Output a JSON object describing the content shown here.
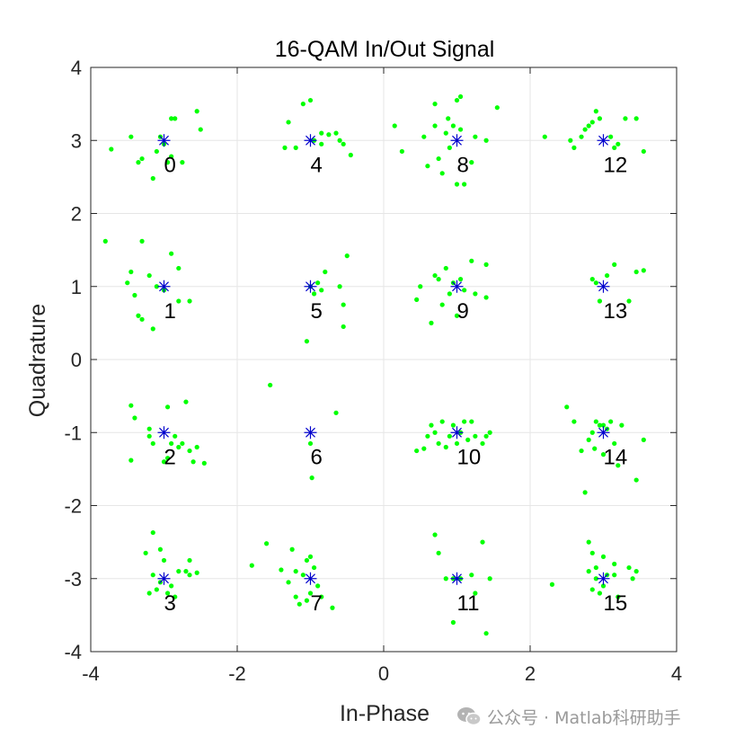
{
  "chart_data": {
    "type": "scatter",
    "title": "16-QAM In/Out Signal",
    "xlabel": "In-Phase",
    "ylabel": "Quadrature",
    "xlim": [
      -4,
      4
    ],
    "ylim": [
      -4,
      4
    ],
    "xticks": [
      -4,
      -2,
      0,
      2,
      4
    ],
    "yticks": [
      -4,
      -3,
      -2,
      -1,
      0,
      1,
      2,
      3,
      4
    ],
    "xtick_labels": [
      "-4",
      "-2",
      "0",
      "2",
      "4"
    ],
    "ytick_labels": [
      "-4",
      "-3",
      "-2",
      "-1",
      "0",
      "1",
      "2",
      "3",
      "4"
    ],
    "grid": true,
    "colors": {
      "received": "#00ff00",
      "reference": "#0000cc",
      "grid": "#e6e6e6",
      "axis": "#262626"
    },
    "series": [
      {
        "marker": "dot",
        "points": [
          [
            -3.72,
            2.88
          ],
          [
            -3.35,
            2.7
          ],
          [
            -3.3,
            2.75
          ],
          [
            -3.1,
            2.85
          ],
          [
            -3.05,
            3.05
          ],
          [
            -3.0,
            2.95
          ],
          [
            -2.95,
            2.7
          ],
          [
            -2.9,
            3.3
          ],
          [
            -2.85,
            3.3
          ],
          [
            -2.9,
            2.78
          ],
          [
            -2.75,
            2.7
          ],
          [
            -3.15,
            2.48
          ],
          [
            -2.55,
            3.4
          ],
          [
            -2.5,
            3.15
          ],
          [
            -3.45,
            3.05
          ],
          [
            -1.0,
            3.55
          ],
          [
            -1.1,
            3.5
          ],
          [
            -1.3,
            3.25
          ],
          [
            -1.35,
            2.9
          ],
          [
            -1.2,
            2.9
          ],
          [
            -0.95,
            3.0
          ],
          [
            -0.85,
            3.1
          ],
          [
            -0.75,
            3.08
          ],
          [
            -0.65,
            3.1
          ],
          [
            -0.55,
            2.95
          ],
          [
            -0.6,
            3.0
          ],
          [
            -0.45,
            2.8
          ],
          [
            -0.85,
            2.95
          ],
          [
            0.15,
            3.2
          ],
          [
            0.25,
            2.85
          ],
          [
            0.55,
            3.05
          ],
          [
            0.6,
            2.65
          ],
          [
            0.7,
            3.5
          ],
          [
            0.75,
            2.75
          ],
          [
            0.8,
            2.55
          ],
          [
            0.85,
            3.1
          ],
          [
            0.9,
            2.9
          ],
          [
            0.95,
            3.2
          ],
          [
            1.0,
            3.55
          ],
          [
            1.05,
            3.6
          ],
          [
            1.05,
            3.15
          ],
          [
            1.1,
            2.4
          ],
          [
            1.0,
            2.4
          ],
          [
            1.2,
            2.7
          ],
          [
            1.25,
            3.05
          ],
          [
            1.4,
            3.0
          ],
          [
            1.55,
            3.45
          ],
          [
            0.88,
            3.3
          ],
          [
            0.7,
            3.2
          ],
          [
            2.2,
            3.05
          ],
          [
            2.55,
            3.0
          ],
          [
            2.6,
            2.9
          ],
          [
            2.75,
            3.15
          ],
          [
            2.8,
            3.2
          ],
          [
            2.85,
            3.25
          ],
          [
            2.9,
            3.4
          ],
          [
            2.95,
            3.3
          ],
          [
            3.1,
            3.05
          ],
          [
            3.15,
            2.9
          ],
          [
            3.2,
            2.95
          ],
          [
            3.3,
            3.3
          ],
          [
            3.45,
            3.3
          ],
          [
            3.55,
            2.85
          ],
          [
            2.7,
            3.05
          ],
          [
            -3.8,
            1.62
          ],
          [
            -3.3,
            1.62
          ],
          [
            -3.5,
            1.05
          ],
          [
            -3.45,
            1.2
          ],
          [
            -3.3,
            0.55
          ],
          [
            -3.35,
            0.6
          ],
          [
            -3.15,
            0.42
          ],
          [
            -3.1,
            1.0
          ],
          [
            -3.0,
            0.95
          ],
          [
            -2.9,
            1.45
          ],
          [
            -2.8,
            1.25
          ],
          [
            -2.8,
            0.8
          ],
          [
            -2.65,
            0.8
          ],
          [
            -3.2,
            1.15
          ],
          [
            -3.4,
            0.88
          ],
          [
            -1.0,
            1.0
          ],
          [
            -0.95,
            0.9
          ],
          [
            -0.9,
            1.05
          ],
          [
            -0.85,
            0.95
          ],
          [
            -0.8,
            1.2
          ],
          [
            -0.6,
            1.0
          ],
          [
            -0.55,
            0.75
          ],
          [
            -0.55,
            0.45
          ],
          [
            -0.5,
            1.42
          ],
          [
            -1.05,
            0.25
          ],
          [
            0.45,
            0.82
          ],
          [
            0.65,
            0.5
          ],
          [
            0.7,
            1.15
          ],
          [
            0.75,
            1.1
          ],
          [
            0.8,
            0.75
          ],
          [
            0.85,
            1.25
          ],
          [
            0.9,
            0.9
          ],
          [
            0.95,
            1.05
          ],
          [
            1.0,
            0.6
          ],
          [
            1.05,
            1.1
          ],
          [
            1.1,
            0.95
          ],
          [
            1.2,
            1.35
          ],
          [
            1.25,
            0.9
          ],
          [
            1.4,
            0.85
          ],
          [
            1.4,
            1.3
          ],
          [
            0.5,
            1.0
          ],
          [
            2.85,
            1.1
          ],
          [
            2.95,
            0.8
          ],
          [
            3.05,
            1.15
          ],
          [
            3.15,
            1.3
          ],
          [
            3.35,
            0.8
          ],
          [
            3.45,
            1.2
          ],
          [
            3.55,
            1.22
          ],
          [
            2.9,
            1.05
          ],
          [
            -3.45,
            -0.63
          ],
          [
            -3.4,
            -0.8
          ],
          [
            -3.45,
            -1.38
          ],
          [
            -3.2,
            -0.95
          ],
          [
            -3.15,
            -1.15
          ],
          [
            -3.2,
            -1.05
          ],
          [
            -3.0,
            -1.4
          ],
          [
            -2.95,
            -0.65
          ],
          [
            -2.9,
            -1.15
          ],
          [
            -2.85,
            -1.05
          ],
          [
            -2.8,
            -1.2
          ],
          [
            -2.75,
            -1.15
          ],
          [
            -2.7,
            -0.58
          ],
          [
            -2.6,
            -1.4
          ],
          [
            -2.55,
            -1.2
          ],
          [
            -2.45,
            -1.42
          ],
          [
            -2.95,
            -1.35
          ],
          [
            -2.65,
            -1.25
          ],
          [
            -1.55,
            -0.35
          ],
          [
            -0.65,
            -0.73
          ],
          [
            -0.98,
            -1.62
          ],
          [
            -1.0,
            -1.15
          ],
          [
            0.45,
            -1.25
          ],
          [
            0.6,
            -1.05
          ],
          [
            0.65,
            -0.9
          ],
          [
            0.7,
            -1.0
          ],
          [
            0.75,
            -1.15
          ],
          [
            0.8,
            -0.85
          ],
          [
            0.85,
            -1.2
          ],
          [
            0.9,
            -1.05
          ],
          [
            0.95,
            -0.9
          ],
          [
            1.0,
            -1.15
          ],
          [
            1.05,
            -1.0
          ],
          [
            1.1,
            -0.85
          ],
          [
            1.15,
            -1.1
          ],
          [
            1.2,
            -0.85
          ],
          [
            1.25,
            -1.05
          ],
          [
            1.35,
            -1.15
          ],
          [
            1.45,
            -1.0
          ],
          [
            1.4,
            -1.05
          ],
          [
            0.55,
            -1.22
          ],
          [
            2.5,
            -0.65
          ],
          [
            2.6,
            -0.85
          ],
          [
            2.7,
            -1.25
          ],
          [
            2.8,
            -1.1
          ],
          [
            2.85,
            -1.0
          ],
          [
            2.9,
            -0.85
          ],
          [
            2.95,
            -0.9
          ],
          [
            3.0,
            -0.9
          ],
          [
            3.0,
            -1.3
          ],
          [
            3.05,
            -0.95
          ],
          [
            3.1,
            -0.85
          ],
          [
            3.15,
            -1.15
          ],
          [
            3.2,
            -1.45
          ],
          [
            3.25,
            -0.9
          ],
          [
            3.45,
            -1.65
          ],
          [
            3.55,
            -1.1
          ],
          [
            2.75,
            -1.82
          ],
          [
            2.88,
            -1.22
          ],
          [
            -3.15,
            -2.37
          ],
          [
            -3.25,
            -2.65
          ],
          [
            -3.15,
            -2.95
          ],
          [
            -3.05,
            -3.05
          ],
          [
            -3.2,
            -3.2
          ],
          [
            -3.1,
            -3.15
          ],
          [
            -3.0,
            -2.75
          ],
          [
            -2.95,
            -3.2
          ],
          [
            -2.9,
            -3.1
          ],
          [
            -2.8,
            -2.9
          ],
          [
            -2.7,
            -2.9
          ],
          [
            -2.65,
            -2.95
          ],
          [
            -2.65,
            -2.75
          ],
          [
            -2.55,
            -2.92
          ],
          [
            -3.05,
            -2.6
          ],
          [
            -2.85,
            -3.25
          ],
          [
            -1.8,
            -2.82
          ],
          [
            -1.6,
            -2.52
          ],
          [
            -1.4,
            -2.88
          ],
          [
            -1.25,
            -2.6
          ],
          [
            -1.2,
            -2.9
          ],
          [
            -1.1,
            -2.95
          ],
          [
            -1.05,
            -2.75
          ],
          [
            -1.0,
            -2.7
          ],
          [
            -0.95,
            -2.85
          ],
          [
            -0.9,
            -3.1
          ],
          [
            -1.0,
            -3.2
          ],
          [
            -1.05,
            -3.3
          ],
          [
            -1.2,
            -3.25
          ],
          [
            -1.15,
            -3.35
          ],
          [
            -0.85,
            -3.25
          ],
          [
            -0.7,
            -3.4
          ],
          [
            -1.3,
            -3.05
          ],
          [
            0.7,
            -2.4
          ],
          [
            0.75,
            -2.65
          ],
          [
            0.85,
            -3.0
          ],
          [
            0.95,
            -3.0
          ],
          [
            1.05,
            -3.0
          ],
          [
            1.2,
            -2.95
          ],
          [
            1.25,
            -3.2
          ],
          [
            1.35,
            -2.5
          ],
          [
            1.45,
            -3.0
          ],
          [
            0.95,
            -3.6
          ],
          [
            1.4,
            -3.75
          ],
          [
            2.3,
            -3.08
          ],
          [
            2.8,
            -2.5
          ],
          [
            2.85,
            -2.65
          ],
          [
            2.9,
            -2.85
          ],
          [
            2.95,
            -3.2
          ],
          [
            2.9,
            -3.0
          ],
          [
            3.0,
            -3.1
          ],
          [
            3.05,
            -2.95
          ],
          [
            3.15,
            -2.95
          ],
          [
            3.15,
            -2.8
          ],
          [
            3.2,
            -3.25
          ],
          [
            3.35,
            -2.85
          ],
          [
            3.4,
            -3.0
          ],
          [
            3.45,
            -2.9
          ],
          [
            2.85,
            -3.15
          ],
          [
            2.8,
            -2.9
          ],
          [
            3.0,
            -2.7
          ]
        ]
      },
      {
        "marker": "asterisk",
        "points": [
          [
            -3,
            3
          ],
          [
            -1,
            3
          ],
          [
            1,
            3
          ],
          [
            3,
            3
          ],
          [
            -3,
            1
          ],
          [
            -1,
            1
          ],
          [
            1,
            1
          ],
          [
            3,
            1
          ],
          [
            -3,
            -1
          ],
          [
            -1,
            -1
          ],
          [
            1,
            -1
          ],
          [
            3,
            -1
          ],
          [
            -3,
            -3
          ],
          [
            -1,
            -3
          ],
          [
            1,
            -3
          ],
          [
            3,
            -3
          ]
        ]
      }
    ],
    "annotations": [
      {
        "text": "0",
        "x": -3,
        "y": 3
      },
      {
        "text": "4",
        "x": -1,
        "y": 3
      },
      {
        "text": "8",
        "x": 1,
        "y": 3
      },
      {
        "text": "12",
        "x": 3,
        "y": 3
      },
      {
        "text": "1",
        "x": -3,
        "y": 1
      },
      {
        "text": "5",
        "x": -1,
        "y": 1
      },
      {
        "text": "9",
        "x": 1,
        "y": 1
      },
      {
        "text": "13",
        "x": 3,
        "y": 1
      },
      {
        "text": "2",
        "x": -3,
        "y": -1
      },
      {
        "text": "6",
        "x": -1,
        "y": -1
      },
      {
        "text": "10",
        "x": 1,
        "y": -1
      },
      {
        "text": "14",
        "x": 3,
        "y": -1
      },
      {
        "text": "3",
        "x": -3,
        "y": -3
      },
      {
        "text": "7",
        "x": -1,
        "y": -3
      },
      {
        "text": "11",
        "x": 1,
        "y": -3
      },
      {
        "text": "15",
        "x": 3,
        "y": -3
      }
    ]
  },
  "watermark": {
    "text": "公众号 · Matlab科研助手",
    "icon": "wechat-icon"
  }
}
